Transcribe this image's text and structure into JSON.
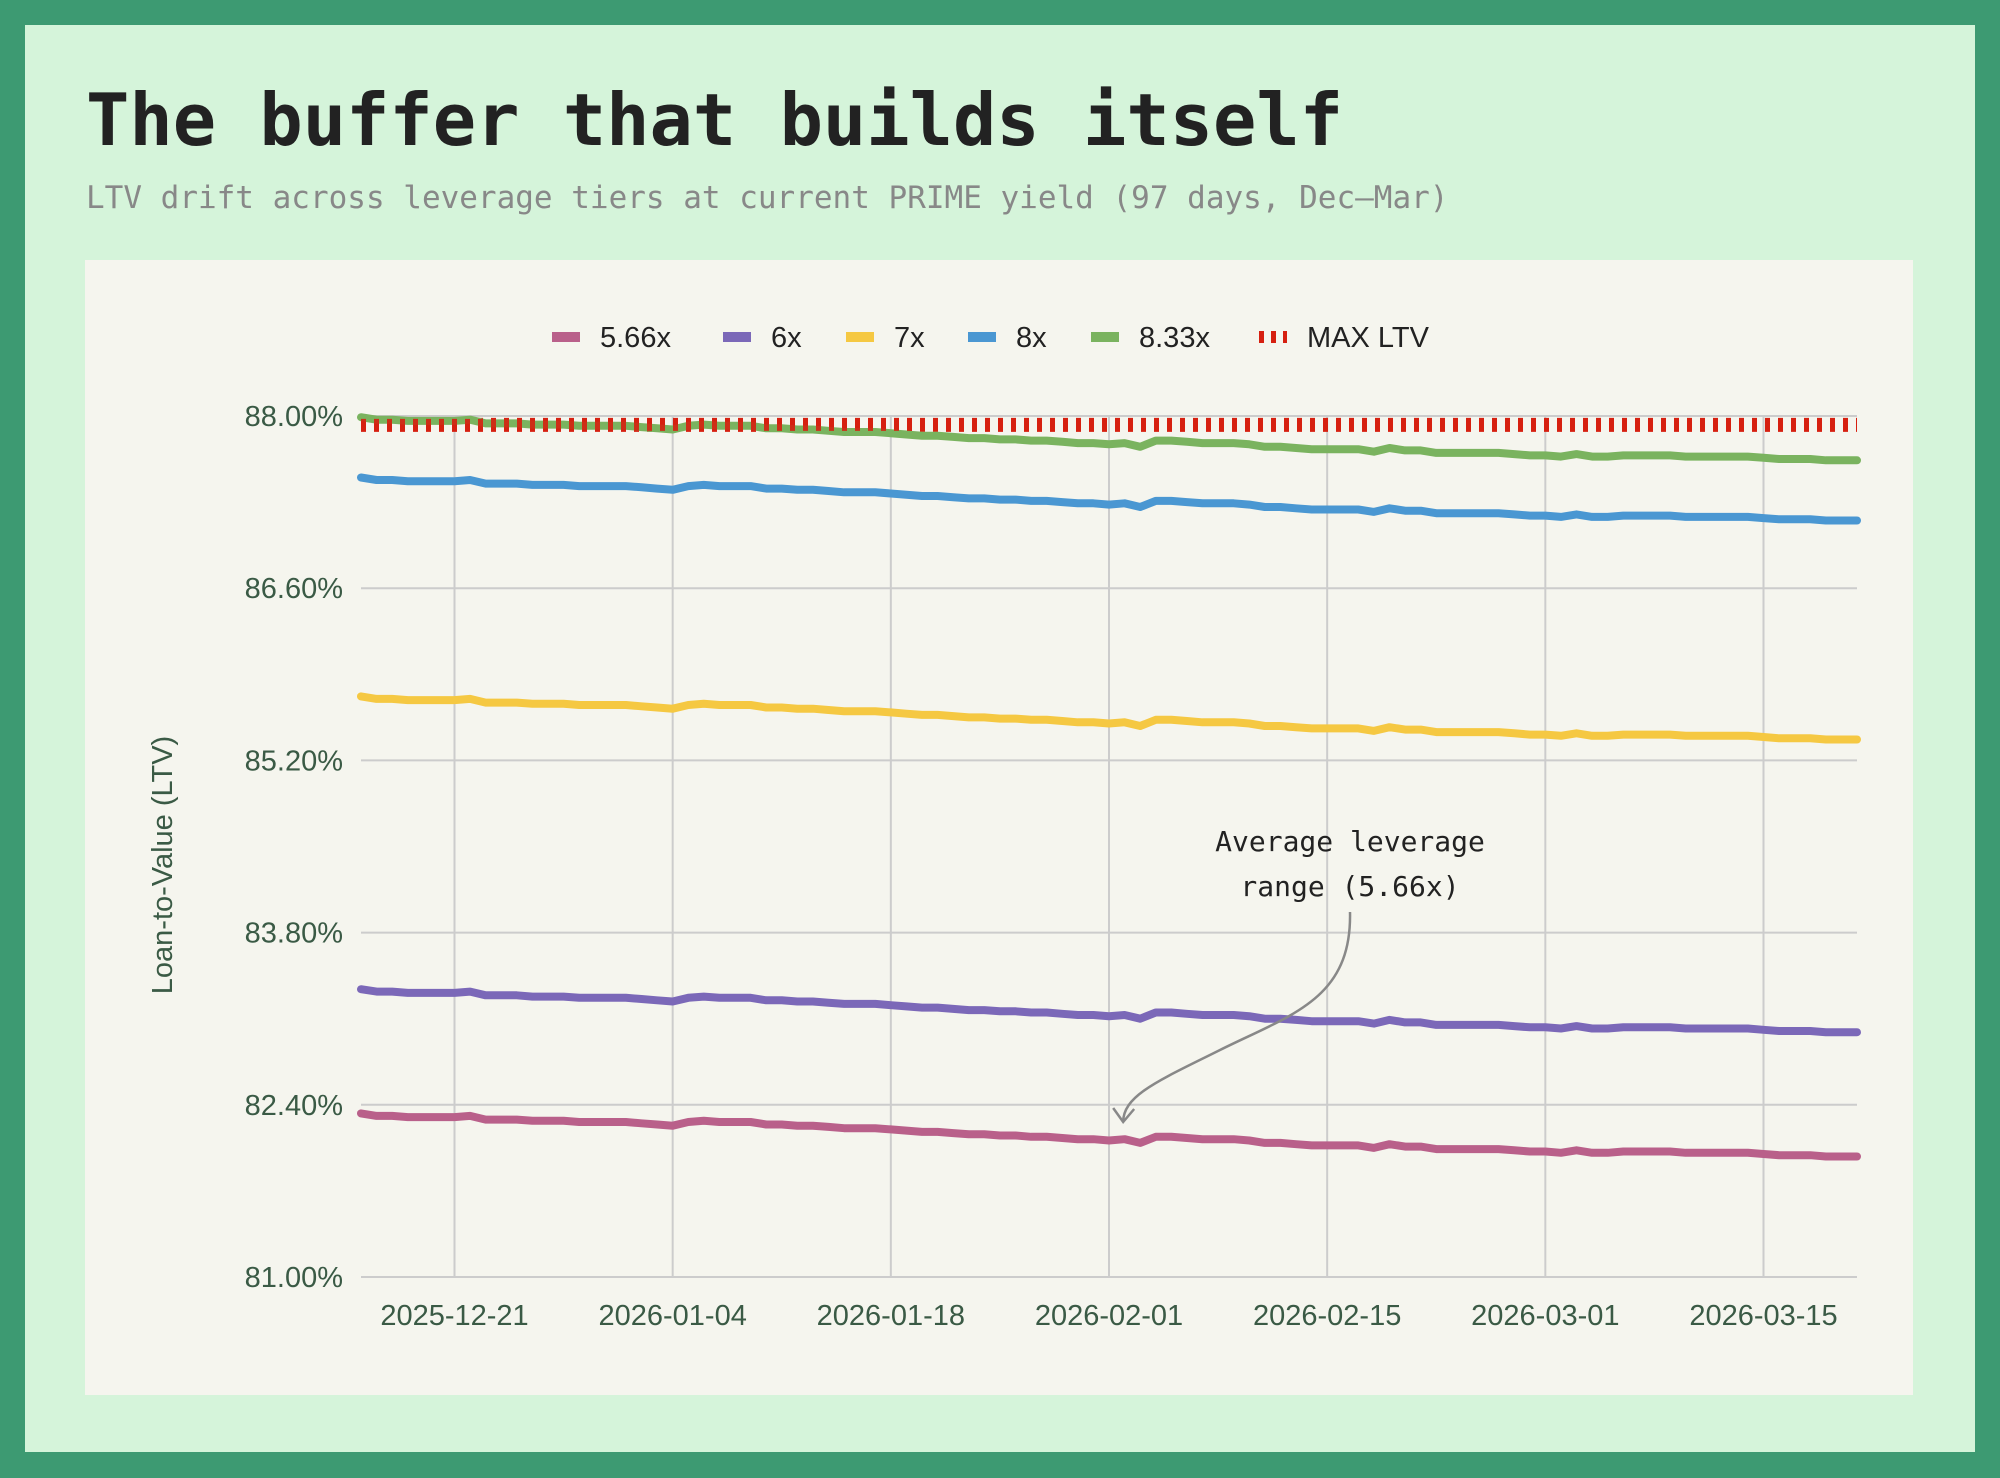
{
  "header": {
    "title": "The buffer that builds itself",
    "subtitle": "LTV drift across leverage tiers at current PRIME yield (97 days, Dec–Mar)"
  },
  "chart_data": {
    "type": "line",
    "title": "The buffer that builds itself",
    "xlabel": "",
    "ylabel": "Loan-to-Value (LTV)",
    "ylim": [
      81.0,
      88.0
    ],
    "grid": true,
    "legend_position": "top-center",
    "x_start": "2025-12-15",
    "x_end": "2026-03-21",
    "x_ticks": [
      {
        "label": "2025-12-21",
        "day": 6
      },
      {
        "label": "2026-01-04",
        "day": 20
      },
      {
        "label": "2026-01-18",
        "day": 34
      },
      {
        "label": "2026-02-01",
        "day": 48
      },
      {
        "label": "2026-02-15",
        "day": 62
      },
      {
        "label": "2026-03-01",
        "day": 76
      },
      {
        "label": "2026-03-15",
        "day": 90
      }
    ],
    "y_ticks": [
      {
        "label": "81.00%",
        "value": 81.0
      },
      {
        "label": "82.40%",
        "value": 82.4
      },
      {
        "label": "83.80%",
        "value": 83.8
      },
      {
        "label": "85.20%",
        "value": 85.2
      },
      {
        "label": "86.60%",
        "value": 86.6
      },
      {
        "label": "88.00%",
        "value": 88.0
      }
    ],
    "series": [
      {
        "name": "5.66x",
        "color": "#b9608a",
        "values": [
          82.33,
          82.31,
          82.31,
          82.3,
          82.3,
          82.3,
          82.3,
          82.31,
          82.28,
          82.28,
          82.28,
          82.27,
          82.27,
          82.27,
          82.26,
          82.26,
          82.26,
          82.26,
          82.25,
          82.24,
          82.23,
          82.26,
          82.27,
          82.26,
          82.26,
          82.26,
          82.24,
          82.24,
          82.23,
          82.23,
          82.22,
          82.21,
          82.21,
          82.21,
          82.2,
          82.19,
          82.18,
          82.18,
          82.17,
          82.16,
          82.16,
          82.15,
          82.15,
          82.14,
          82.14,
          82.13,
          82.12,
          82.12,
          82.11,
          82.12,
          82.09,
          82.14,
          82.14,
          82.13,
          82.12,
          82.12,
          82.12,
          82.11,
          82.09,
          82.09,
          82.08,
          82.07,
          82.07,
          82.07,
          82.07,
          82.05,
          82.08,
          82.06,
          82.06,
          82.04,
          82.04,
          82.04,
          82.04,
          82.04,
          82.03,
          82.02,
          82.02,
          82.01,
          82.03,
          82.01,
          82.01,
          82.02,
          82.02,
          82.02,
          82.02,
          82.01,
          82.01,
          82.01,
          82.01,
          82.01,
          82.0,
          81.99,
          81.99,
          81.99,
          81.98,
          81.98,
          81.98
        ]
      },
      {
        "name": "6x",
        "color": "#7b68b8",
        "values": [
          83.34,
          83.32,
          83.32,
          83.31,
          83.31,
          83.31,
          83.31,
          83.32,
          83.29,
          83.29,
          83.29,
          83.28,
          83.28,
          83.28,
          83.27,
          83.27,
          83.27,
          83.27,
          83.26,
          83.25,
          83.24,
          83.27,
          83.28,
          83.27,
          83.27,
          83.27,
          83.25,
          83.25,
          83.24,
          83.24,
          83.23,
          83.22,
          83.22,
          83.22,
          83.21,
          83.2,
          83.19,
          83.19,
          83.18,
          83.17,
          83.17,
          83.16,
          83.16,
          83.15,
          83.15,
          83.14,
          83.13,
          83.13,
          83.12,
          83.13,
          83.1,
          83.15,
          83.15,
          83.14,
          83.13,
          83.13,
          83.13,
          83.12,
          83.1,
          83.1,
          83.09,
          83.08,
          83.08,
          83.08,
          83.08,
          83.06,
          83.09,
          83.07,
          83.07,
          83.05,
          83.05,
          83.05,
          83.05,
          83.05,
          83.04,
          83.03,
          83.03,
          83.02,
          83.04,
          83.02,
          83.02,
          83.03,
          83.03,
          83.03,
          83.03,
          83.02,
          83.02,
          83.02,
          83.02,
          83.02,
          83.01,
          83.0,
          83.0,
          83.0,
          82.99,
          82.99,
          82.99
        ]
      },
      {
        "name": "7x",
        "color": "#f5c842",
        "values": [
          85.72,
          85.7,
          85.7,
          85.69,
          85.69,
          85.69,
          85.69,
          85.7,
          85.67,
          85.67,
          85.67,
          85.66,
          85.66,
          85.66,
          85.65,
          85.65,
          85.65,
          85.65,
          85.64,
          85.63,
          85.62,
          85.65,
          85.66,
          85.65,
          85.65,
          85.65,
          85.63,
          85.63,
          85.62,
          85.62,
          85.61,
          85.6,
          85.6,
          85.6,
          85.59,
          85.58,
          85.57,
          85.57,
          85.56,
          85.55,
          85.55,
          85.54,
          85.54,
          85.53,
          85.53,
          85.52,
          85.51,
          85.51,
          85.5,
          85.51,
          85.48,
          85.53,
          85.53,
          85.52,
          85.51,
          85.51,
          85.51,
          85.5,
          85.48,
          85.48,
          85.47,
          85.46,
          85.46,
          85.46,
          85.46,
          85.44,
          85.47,
          85.45,
          85.45,
          85.43,
          85.43,
          85.43,
          85.43,
          85.43,
          85.42,
          85.41,
          85.41,
          85.4,
          85.42,
          85.4,
          85.4,
          85.41,
          85.41,
          85.41,
          85.41,
          85.4,
          85.4,
          85.4,
          85.4,
          85.4,
          85.39,
          85.38,
          85.38,
          85.38,
          85.37,
          85.37,
          85.37
        ]
      },
      {
        "name": "8x",
        "color": "#4a97d2",
        "values": [
          87.5,
          87.48,
          87.48,
          87.47,
          87.47,
          87.47,
          87.47,
          87.48,
          87.45,
          87.45,
          87.45,
          87.44,
          87.44,
          87.44,
          87.43,
          87.43,
          87.43,
          87.43,
          87.42,
          87.41,
          87.4,
          87.43,
          87.44,
          87.43,
          87.43,
          87.43,
          87.41,
          87.41,
          87.4,
          87.4,
          87.39,
          87.38,
          87.38,
          87.38,
          87.37,
          87.36,
          87.35,
          87.35,
          87.34,
          87.33,
          87.33,
          87.32,
          87.32,
          87.31,
          87.31,
          87.3,
          87.29,
          87.29,
          87.28,
          87.29,
          87.26,
          87.31,
          87.31,
          87.3,
          87.29,
          87.29,
          87.29,
          87.28,
          87.26,
          87.26,
          87.25,
          87.24,
          87.24,
          87.24,
          87.24,
          87.22,
          87.25,
          87.23,
          87.23,
          87.21,
          87.21,
          87.21,
          87.21,
          87.21,
          87.2,
          87.19,
          87.19,
          87.18,
          87.2,
          87.18,
          87.18,
          87.19,
          87.19,
          87.19,
          87.19,
          87.18,
          87.18,
          87.18,
          87.18,
          87.18,
          87.17,
          87.16,
          87.16,
          87.16,
          87.15,
          87.15,
          87.15
        ]
      },
      {
        "name": "8.33x",
        "color": "#7ab35f",
        "values": [
          87.99,
          87.97,
          87.97,
          87.96,
          87.96,
          87.96,
          87.96,
          87.97,
          87.94,
          87.94,
          87.94,
          87.93,
          87.93,
          87.93,
          87.92,
          87.92,
          87.92,
          87.92,
          87.91,
          87.9,
          87.89,
          87.92,
          87.93,
          87.92,
          87.92,
          87.92,
          87.9,
          87.9,
          87.89,
          87.89,
          87.88,
          87.87,
          87.87,
          87.87,
          87.86,
          87.85,
          87.84,
          87.84,
          87.83,
          87.82,
          87.82,
          87.81,
          87.81,
          87.8,
          87.8,
          87.79,
          87.78,
          87.78,
          87.77,
          87.78,
          87.75,
          87.8,
          87.8,
          87.79,
          87.78,
          87.78,
          87.78,
          87.77,
          87.75,
          87.75,
          87.74,
          87.73,
          87.73,
          87.73,
          87.73,
          87.71,
          87.74,
          87.72,
          87.72,
          87.7,
          87.7,
          87.7,
          87.7,
          87.7,
          87.69,
          87.68,
          87.68,
          87.67,
          87.69,
          87.67,
          87.67,
          87.68,
          87.68,
          87.68,
          87.68,
          87.67,
          87.67,
          87.67,
          87.67,
          87.67,
          87.66,
          87.65,
          87.65,
          87.65,
          87.64,
          87.64,
          87.64
        ]
      }
    ],
    "reference_line": {
      "name": "MAX LTV",
      "value": 87.96,
      "color": "#d62010",
      "style": "dotted"
    },
    "annotation": {
      "lines": [
        "Average leverage",
        "range (5.66x)"
      ],
      "target_series": "5.66x",
      "target_day": 50
    }
  }
}
